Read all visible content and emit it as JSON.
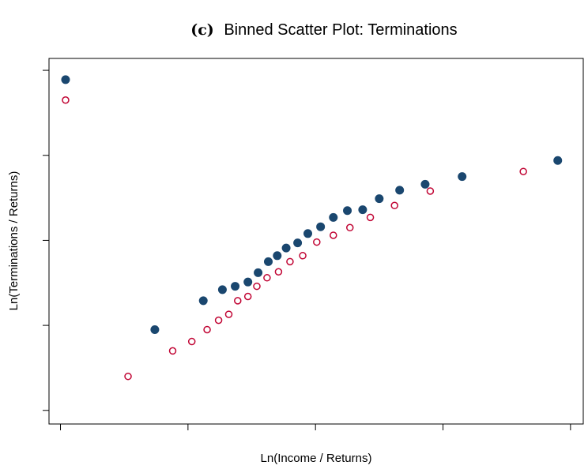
{
  "chart_data": {
    "type": "scatter",
    "label": "(c)",
    "title": "Binned Scatter Plot: Terminations",
    "x_label": "Ln(Income / Returns)",
    "y_label": "Ln(Terminations / Returns)",
    "xlim": [
      -0.09,
      4.1
    ],
    "ylim": [
      -0.16,
      4.14
    ],
    "xticks": [
      0,
      1,
      2,
      3,
      4
    ],
    "yticks": [
      0,
      1,
      2,
      3,
      4
    ],
    "series": [
      {
        "color": "#1a476f",
        "filled": true,
        "x": [
          0.04,
          0.74,
          1.12,
          1.27,
          1.37,
          1.47,
          1.55,
          1.63,
          1.7,
          1.77,
          1.86,
          1.94,
          2.04,
          2.14,
          2.25,
          2.37,
          2.5,
          2.66,
          2.86,
          3.15,
          3.9
        ],
        "values": [
          3.89,
          0.95,
          1.29,
          1.42,
          1.46,
          1.51,
          1.62,
          1.75,
          1.82,
          1.91,
          1.97,
          2.08,
          2.16,
          2.27,
          2.35,
          2.36,
          2.49,
          2.59,
          2.66,
          2.75,
          2.94
        ]
      },
      {
        "color": "#c10534",
        "filled": false,
        "x": [
          0.04,
          0.53,
          0.88,
          1.03,
          1.15,
          1.24,
          1.32,
          1.39,
          1.47,
          1.54,
          1.62,
          1.71,
          1.8,
          1.9,
          2.01,
          2.14,
          2.27,
          2.43,
          2.62,
          2.9,
          3.63
        ],
        "values": [
          3.65,
          0.4,
          0.7,
          0.81,
          0.95,
          1.06,
          1.13,
          1.29,
          1.34,
          1.46,
          1.56,
          1.63,
          1.75,
          1.82,
          1.98,
          2.06,
          2.15,
          2.27,
          2.41,
          2.58,
          2.81
        ]
      }
    ]
  }
}
